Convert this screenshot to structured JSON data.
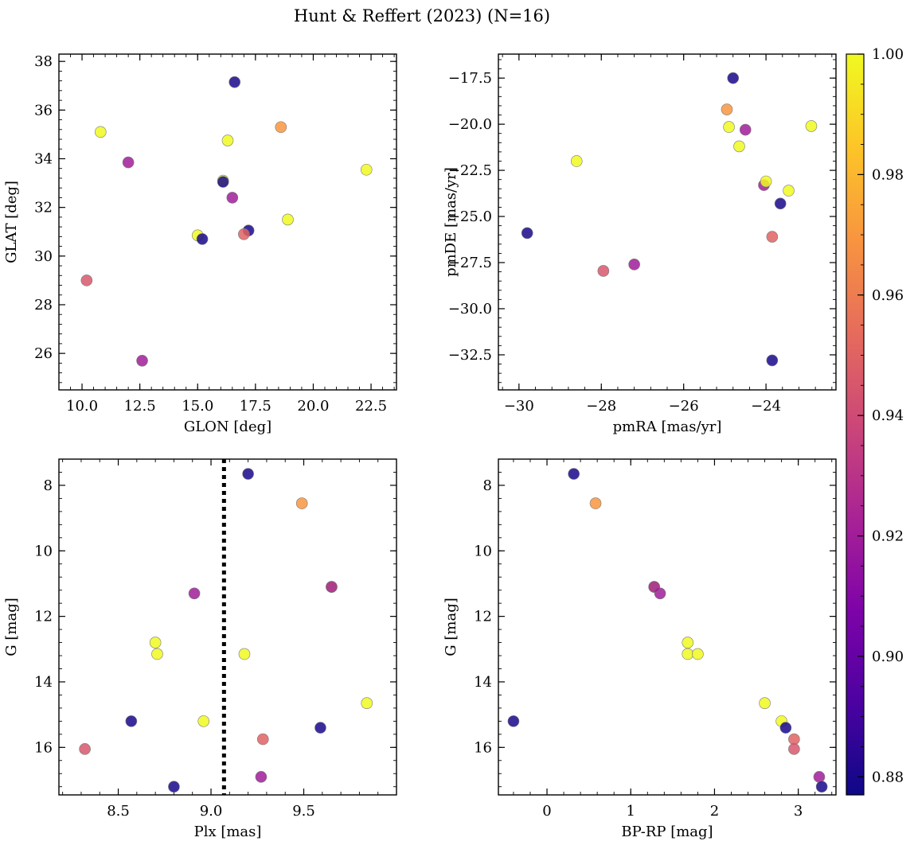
{
  "title": "Hunt & Reffert (2023) (N=16)",
  "colorbar": {
    "colormap": "plasma",
    "range": [
      0.877,
      1.0
    ],
    "ticks": [
      0.88,
      0.9,
      0.92,
      0.94,
      0.96,
      0.98,
      1.0
    ],
    "tick_labels": [
      "0.88",
      "0.90",
      "0.92",
      "0.94",
      "0.96",
      "0.98",
      "1.00"
    ]
  },
  "stars": [
    {
      "glon": 16.6,
      "glat": 37.15,
      "pmra": -24.8,
      "pmde": -17.5,
      "plx": 9.2,
      "g": 7.65,
      "bp_rp": 0.32,
      "prob": 0.88
    },
    {
      "glon": 18.6,
      "glat": 35.3,
      "pmra": -24.95,
      "pmde": -19.2,
      "plx": 9.49,
      "g": 8.55,
      "bp_rp": 0.58,
      "prob": 0.97
    },
    {
      "glon": 10.8,
      "glat": 35.1,
      "pmra": -24.9,
      "pmde": -20.15,
      "plx": 9.65,
      "g": 11.1,
      "bp_rp": 1.28,
      "prob": 1.0
    },
    {
      "glon": 12.0,
      "glat": 33.85,
      "pmra": -24.5,
      "pmde": -20.3,
      "plx": 8.91,
      "g": 11.3,
      "bp_rp": 1.35,
      "prob": 0.92
    },
    {
      "glon": 16.3,
      "glat": 34.75,
      "pmra": -24.65,
      "pmde": -21.2,
      "plx": 8.7,
      "g": 12.8,
      "bp_rp": 1.68,
      "prob": 1.0
    },
    {
      "glon": 22.3,
      "glat": 33.55,
      "pmra": -22.9,
      "pmde": -20.1,
      "plx": 8.71,
      "g": 13.15,
      "bp_rp": 1.68,
      "prob": 1.0
    },
    {
      "glon": 16.1,
      "glat": 33.1,
      "pmra": -28.6,
      "pmde": -22.0,
      "plx": 9.18,
      "g": 13.15,
      "bp_rp": 1.8,
      "prob": 1.0
    },
    {
      "glon": 16.5,
      "glat": 32.4,
      "pmra": -24.05,
      "pmde": -23.3,
      "plx": 9.65,
      "g": 11.1,
      "bp_rp": 1.28,
      "prob": 0.92
    },
    {
      "glon": 18.9,
      "glat": 31.5,
      "pmra": -24.0,
      "pmde": -23.1,
      "plx": 9.84,
      "g": 14.65,
      "bp_rp": 2.6,
      "prob": 1.0
    },
    {
      "glon": 15.0,
      "glat": 30.85,
      "pmra": -23.45,
      "pmde": -23.6,
      "plx": 8.96,
      "g": 15.2,
      "bp_rp": 2.8,
      "prob": 1.0
    },
    {
      "glon": 15.2,
      "glat": 30.7,
      "pmra": -23.65,
      "pmde": -24.3,
      "plx": 8.57,
      "g": 15.2,
      "bp_rp": -0.4,
      "prob": 0.88
    },
    {
      "glon": 17.2,
      "glat": 31.05,
      "pmra": -29.8,
      "pmde": -25.9,
      "plx": 9.59,
      "g": 15.4,
      "bp_rp": 2.85,
      "prob": 0.88
    },
    {
      "glon": 17.0,
      "glat": 30.9,
      "pmra": -23.85,
      "pmde": -26.1,
      "plx": 9.28,
      "g": 15.75,
      "bp_rp": 2.95,
      "prob": 0.95
    },
    {
      "glon": 10.2,
      "glat": 29.0,
      "pmra": -27.95,
      "pmde": -27.95,
      "plx": 8.32,
      "g": 16.05,
      "bp_rp": 2.95,
      "prob": 0.945
    },
    {
      "glon": 12.6,
      "glat": 25.7,
      "pmra": -27.2,
      "pmde": -27.6,
      "plx": 9.27,
      "g": 16.9,
      "bp_rp": 3.25,
      "prob": 0.92
    },
    {
      "glon": 16.1,
      "glat": 33.05,
      "pmra": -23.85,
      "pmde": -32.8,
      "plx": 8.8,
      "g": 17.2,
      "bp_rp": 3.28,
      "prob": 0.88
    }
  ],
  "chart_data": [
    {
      "type": "scatter",
      "name": "position",
      "xkey": "glon",
      "ykey": "glat",
      "xlabel": "GLON [deg]",
      "ylabel": "GLAT [deg]",
      "xlim": [
        9.0,
        23.6
      ],
      "ylim": [
        24.5,
        38.3
      ],
      "invert_y": false,
      "xticks": [
        10.0,
        12.5,
        15.0,
        17.5,
        20.0,
        22.5
      ],
      "xtick_labels": [
        "10.0",
        "12.5",
        "15.0",
        "17.5",
        "20.0",
        "22.5"
      ],
      "yticks": [
        26,
        28,
        30,
        32,
        34,
        36,
        38
      ],
      "ytick_labels": [
        "26",
        "28",
        "30",
        "32",
        "34",
        "36",
        "38"
      ]
    },
    {
      "type": "scatter",
      "name": "proper-motion",
      "xkey": "pmra",
      "ykey": "pmde",
      "xlabel": "pmRA [mas/yr]",
      "ylabel": "pmDE [mas/yr]",
      "xlim": [
        -30.5,
        -22.3
      ],
      "ylim": [
        -34.4,
        -16.2
      ],
      "invert_y": false,
      "xticks": [
        -30,
        -28,
        -26,
        -24
      ],
      "xtick_labels": [
        "−30",
        "−28",
        "−26",
        "−24"
      ],
      "yticks": [
        -32.5,
        -30.0,
        -27.5,
        -25.0,
        -22.5,
        -20.0,
        -17.5
      ],
      "ytick_labels": [
        "−32.5",
        "−30.0",
        "−27.5",
        "−25.0",
        "−22.5",
        "−20.0",
        "−17.5"
      ]
    },
    {
      "type": "scatter",
      "name": "parallax-magnitude",
      "xkey": "plx",
      "ykey": "g",
      "xlabel": "Plx [mas]",
      "ylabel": "G [mag]",
      "xlim": [
        8.18,
        10.0
      ],
      "ylim": [
        7.2,
        17.45
      ],
      "invert_y": true,
      "xticks": [
        8.5,
        9.0,
        9.5
      ],
      "xtick_labels": [
        "8.5",
        "9.0",
        "9.5"
      ],
      "yticks": [
        8,
        10,
        12,
        14,
        16
      ],
      "ytick_labels": [
        "8",
        "10",
        "12",
        "14",
        "16"
      ],
      "vline": 9.07
    },
    {
      "type": "scatter",
      "name": "color-magnitude",
      "xkey": "bp_rp",
      "ykey": "g",
      "xlabel": "BP-RP [mag]",
      "ylabel": "G [mag]",
      "xlim": [
        -0.58,
        3.45
      ],
      "ylim": [
        7.2,
        17.45
      ],
      "invert_y": true,
      "xticks": [
        0,
        1,
        2,
        3
      ],
      "xtick_labels": [
        "0",
        "1",
        "2",
        "3"
      ],
      "yticks": [
        8,
        10,
        12,
        14,
        16
      ],
      "ytick_labels": [
        "8",
        "10",
        "12",
        "14",
        "16"
      ]
    }
  ]
}
